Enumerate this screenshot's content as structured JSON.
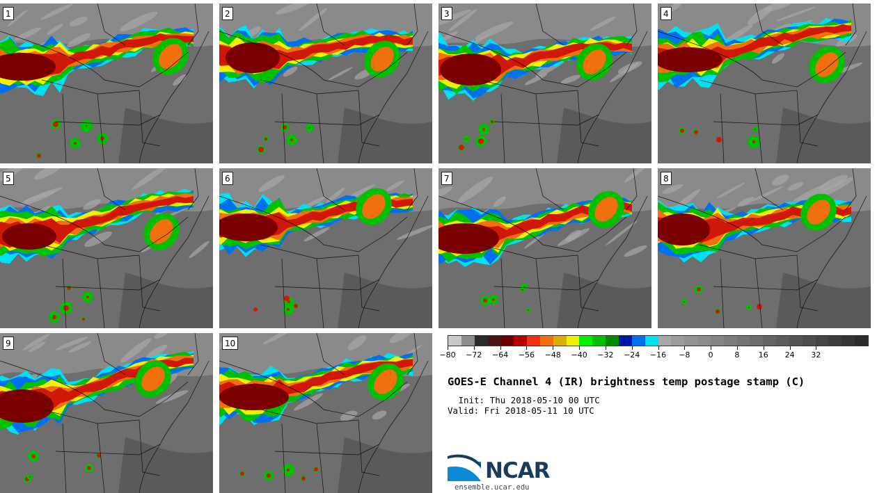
{
  "panels": [
    {
      "label": "1"
    },
    {
      "label": "2"
    },
    {
      "label": "3"
    },
    {
      "label": "4"
    },
    {
      "label": "5"
    },
    {
      "label": "6"
    },
    {
      "label": "7"
    },
    {
      "label": "8"
    },
    {
      "label": "9"
    },
    {
      "label": "10"
    }
  ],
  "colorbar": {
    "colors": [
      "#c8c8c8",
      "#8c8c8c",
      "#2a2a2a",
      "#4a1414",
      "#6e0000",
      "#b40000",
      "#f03010",
      "#f07010",
      "#d8b000",
      "#f0f000",
      "#00f000",
      "#00c000",
      "#008a00",
      "#0018a8",
      "#0070f0",
      "#00e0f0",
      "#a8a8a8",
      "#9c9c9c",
      "#949494",
      "#8c8c8c",
      "#848484",
      "#7c7c7c",
      "#747474",
      "#6c6c6c",
      "#646464",
      "#5c5c5c",
      "#545454",
      "#4c4c4c",
      "#444444",
      "#3c3c3c",
      "#343434",
      "#2c2c2c"
    ],
    "tick_labels": [
      "−80",
      "−72",
      "−64",
      "−56",
      "−48",
      "−40",
      "−32",
      "−24",
      "−16",
      "−8",
      "0",
      "8",
      "16",
      "24",
      "32"
    ]
  },
  "title": "GOES-E Channel 4 (IR) brightness temp postage stamp (C)",
  "init": " Init: Thu 2018-05-10 00 UTC",
  "valid": "Valid: Fri 2018-05-11 10 UTC",
  "logo_text": "NCAR",
  "site": "ensemble.ucar.edu"
}
